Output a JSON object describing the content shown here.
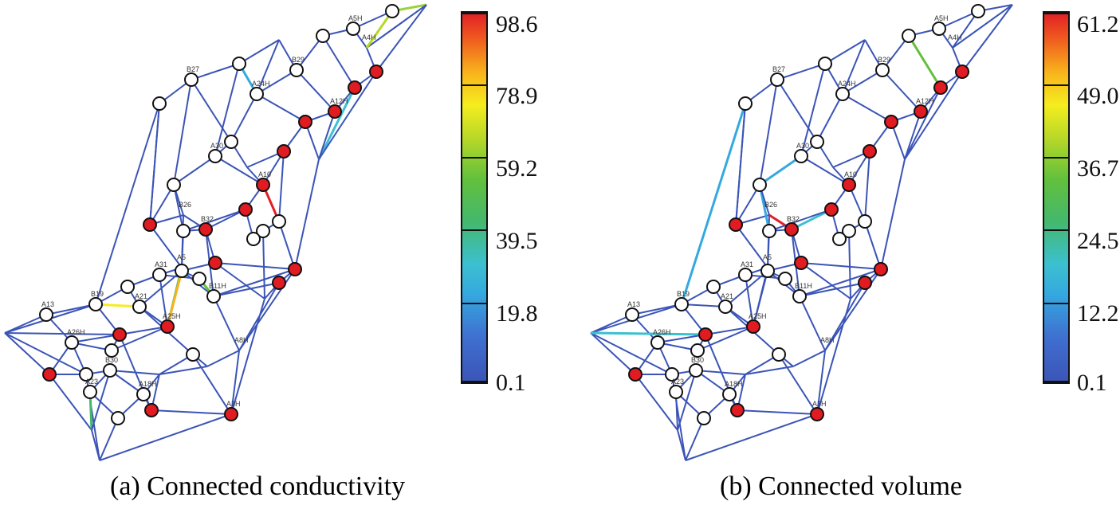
{
  "panels": [
    {
      "id": "a",
      "caption": "(a) Connected conductivity",
      "colorbar": {
        "ticks": [
          "98.6",
          "78.9",
          "59.2",
          "39.5",
          "19.8",
          "0.1"
        ],
        "range": [
          0.1,
          98.6
        ]
      }
    },
    {
      "id": "b",
      "caption": "(b) Connected volume",
      "colorbar": {
        "ticks": [
          "61.2",
          "49.0",
          "36.7",
          "24.5",
          "12.2",
          "0.1"
        ],
        "range": [
          0.1,
          61.2
        ]
      }
    }
  ],
  "node_labels": [
    "A4H",
    "A5H",
    "B29",
    "A12H",
    "A24H",
    "B27",
    "A30",
    "A31",
    "A5",
    "A10",
    "B32",
    "B11H",
    "A13",
    "B19",
    "A21",
    "A25H",
    "A26H",
    "B30",
    "A18H",
    "A23",
    "A3H",
    "A8H",
    "B26"
  ],
  "colors": {
    "edge_base": "#3b54b7",
    "node_red": "#e01b22",
    "node_white": "#ffffff",
    "node_stroke": "#111111"
  }
}
